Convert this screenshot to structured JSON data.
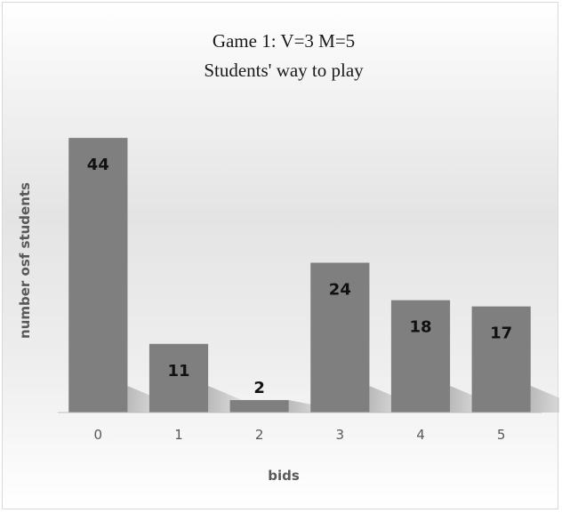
{
  "chart_data": {
    "type": "bar",
    "title": "Game 1: V=3 M=5",
    "subtitle": "Students' way to play",
    "xlabel": "bids",
    "ylabel": "number osf students",
    "categories": [
      "0",
      "1",
      "2",
      "3",
      "4",
      "5"
    ],
    "values": [
      44,
      11,
      2,
      24,
      18,
      17
    ],
    "ylim": [
      0,
      50
    ],
    "grid": false,
    "legend": "none",
    "bar_color": "#7f7f7f",
    "data_labels": true
  }
}
